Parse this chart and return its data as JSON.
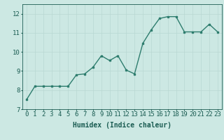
{
  "x": [
    0,
    1,
    2,
    3,
    4,
    5,
    6,
    7,
    8,
    9,
    10,
    11,
    12,
    13,
    14,
    15,
    16,
    17,
    18,
    19,
    20,
    21,
    22,
    23
  ],
  "y": [
    7.5,
    8.2,
    8.2,
    8.2,
    8.2,
    8.2,
    8.8,
    8.85,
    9.2,
    9.8,
    9.55,
    9.8,
    9.05,
    8.85,
    10.45,
    11.15,
    11.75,
    11.85,
    11.85,
    11.05,
    11.05,
    11.05,
    11.45,
    11.05
  ],
  "xlabel": "Humidex (Indice chaleur)",
  "ylim": [
    7,
    12.5
  ],
  "xlim": [
    -0.5,
    23.5
  ],
  "yticks": [
    7,
    8,
    9,
    10,
    11,
    12
  ],
  "xticks": [
    0,
    1,
    2,
    3,
    4,
    5,
    6,
    7,
    8,
    9,
    10,
    11,
    12,
    13,
    14,
    15,
    16,
    17,
    18,
    19,
    20,
    21,
    22,
    23
  ],
  "line_color": "#2e7d6e",
  "marker_color": "#2e7d6e",
  "bg_color": "#cce8e3",
  "grid_color": "#b8d8d2",
  "axis_label_color": "#1a5c52",
  "tick_color": "#1a5c52",
  "font_size_xlabel": 7,
  "font_size_ticks": 6.5
}
